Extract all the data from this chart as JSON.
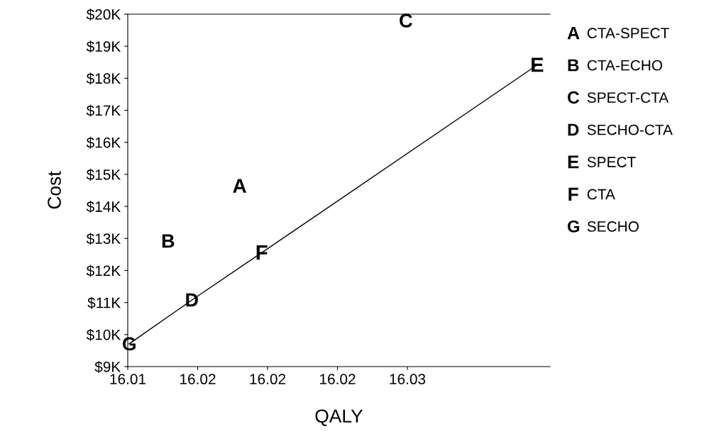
{
  "chart_data": {
    "type": "scatter",
    "xlabel": "QALY",
    "ylabel": "Cost",
    "xlim": [
      16.01,
      16.0402
    ],
    "ylim": [
      9000,
      20000
    ],
    "xticks": [
      {
        "value": 16.01,
        "label": "16.01"
      },
      {
        "value": 16.015,
        "label": "16.02"
      },
      {
        "value": 16.02,
        "label": "16.02"
      },
      {
        "value": 16.025,
        "label": "16.02"
      },
      {
        "value": 16.03,
        "label": "16.03"
      }
    ],
    "yticks": [
      {
        "value": 9000,
        "label": "$9K"
      },
      {
        "value": 10000,
        "label": "$10K"
      },
      {
        "value": 11000,
        "label": "$11K"
      },
      {
        "value": 12000,
        "label": "$12K"
      },
      {
        "value": 13000,
        "label": "$13K"
      },
      {
        "value": 14000,
        "label": "$14K"
      },
      {
        "value": 15000,
        "label": "$15K"
      },
      {
        "value": 16000,
        "label": "$16K"
      },
      {
        "value": 17000,
        "label": "$17K"
      },
      {
        "value": 18000,
        "label": "$18K"
      },
      {
        "value": 19000,
        "label": "$19K"
      },
      {
        "value": 20000,
        "label": "$20K"
      }
    ],
    "grid": false,
    "legend": "right",
    "series": [
      {
        "name": "CTA-SPECT",
        "color": "#000000",
        "x": [
          16.018
        ],
        "values": [
          14640
        ]
      },
      {
        "name": "CTA-ECHO",
        "color": "#000000",
        "x": [
          16.0129
        ],
        "values": [
          12920
        ]
      },
      {
        "name": "SPECT-CTA",
        "color": "#000000",
        "x": [
          16.0299
        ],
        "values": [
          19800
        ]
      },
      {
        "name": "SECHO-CTA",
        "color": "#000000",
        "x": [
          16.0146
        ],
        "values": [
          11080
        ]
      },
      {
        "name": "SPECT",
        "color": "#000000",
        "x": [
          16.0393
        ],
        "values": [
          18420
        ]
      },
      {
        "name": "CTA",
        "color": "#000000",
        "x": [
          16.0196
        ],
        "values": [
          12560
        ]
      },
      {
        "name": "SECHO",
        "color": "#000000",
        "x": [
          16.0101
        ],
        "values": [
          9710
        ]
      },
      {
        "type": "line",
        "marker": "none",
        "color": "#000000",
        "x": [
          16.0101,
          16.0146,
          16.0196,
          16.0393
        ],
        "values": [
          9710,
          11080,
          12560,
          18420
        ]
      }
    ]
  }
}
